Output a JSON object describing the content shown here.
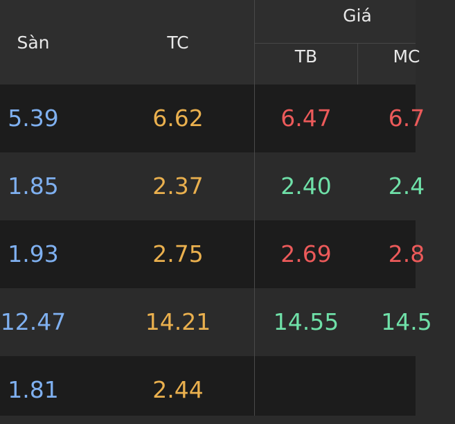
{
  "header": {
    "san": "Sàn",
    "tc": "TC",
    "gia": "Giá",
    "tb": "TB",
    "mc": "MC"
  },
  "rows": [
    {
      "san": "5.39",
      "tc": "6.62",
      "tb": "6.47",
      "mc": "6.7",
      "trend": "down"
    },
    {
      "san": "1.85",
      "tc": "2.37",
      "tb": "2.40",
      "mc": "2.4",
      "trend": "up"
    },
    {
      "san": "1.93",
      "tc": "2.75",
      "tb": "2.69",
      "mc": "2.8",
      "trend": "down"
    },
    {
      "san": "12.47",
      "tc": "14.21",
      "tb": "14.55",
      "mc": "14.5",
      "trend": "up"
    },
    {
      "san": "1.81",
      "tc": "2.44",
      "tb": "",
      "mc": "",
      "trend": ""
    }
  ],
  "colors": {
    "floor": "#7fb0f0",
    "reference": "#eab04e",
    "down": "#ec5a5a",
    "up": "#6fe0a8"
  }
}
